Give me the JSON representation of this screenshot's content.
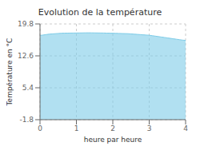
{
  "chart_data": {
    "type": "area",
    "title": "Evolution de la température",
    "xlabel": "heure par heure",
    "ylabel": "Température en °C",
    "xlim": [
      0,
      4
    ],
    "ylim": [
      -1.8,
      19.8
    ],
    "xticks": [
      0,
      1,
      2,
      3,
      4
    ],
    "yticks": [
      -1.8,
      5.4,
      12.6,
      19.8
    ],
    "color": "#7dcce8",
    "grid": true,
    "x": [
      0.0,
      0.083,
      0.167,
      0.25,
      0.333,
      0.417,
      0.5,
      0.583,
      0.667,
      0.75,
      0.833,
      0.917,
      1.0,
      1.083,
      1.167,
      1.25,
      1.333,
      1.417,
      1.5,
      1.583,
      1.667,
      1.75,
      1.833,
      1.917,
      2.0,
      2.083,
      2.167,
      2.25,
      2.333,
      2.417,
      2.5,
      2.583,
      2.667,
      2.75,
      2.833,
      2.917,
      3.0,
      3.083,
      3.167,
      3.25,
      3.333,
      3.417,
      3.5,
      3.583,
      3.667,
      3.75,
      3.833,
      3.917,
      4.0
    ],
    "values": [
      17.2,
      17.3,
      17.4,
      17.5,
      17.55,
      17.6,
      17.65,
      17.7,
      17.72,
      17.73,
      17.74,
      17.75,
      17.76,
      17.77,
      17.78,
      17.79,
      17.8,
      17.79,
      17.78,
      17.77,
      17.76,
      17.75,
      17.73,
      17.72,
      17.7,
      17.68,
      17.66,
      17.64,
      17.62,
      17.6,
      17.55,
      17.5,
      17.45,
      17.4,
      17.35,
      17.3,
      17.25,
      17.15,
      17.05,
      16.95,
      16.85,
      16.75,
      16.65,
      16.55,
      16.45,
      16.35,
      16.25,
      16.15,
      16.1
    ]
  }
}
